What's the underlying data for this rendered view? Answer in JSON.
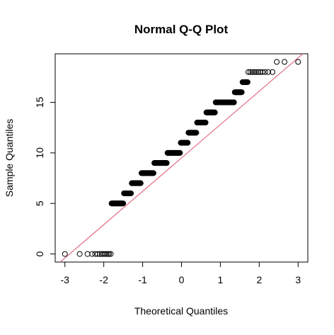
{
  "chart_data": {
    "type": "scatter",
    "title": "Normal Q-Q Plot",
    "xlabel": "Theoretical Quantiles",
    "ylabel": "Sample Quantiles",
    "xlim": [
      -3.25,
      3.25
    ],
    "ylim": [
      -0.8,
      19.8
    ],
    "x_ticks": [
      -3,
      -2,
      -1,
      0,
      1,
      2,
      3
    ],
    "x_tick_labels": [
      "-3",
      "-2",
      "-1",
      "0",
      "1",
      "2",
      "3"
    ],
    "y_ticks": [
      0,
      5,
      10,
      15
    ],
    "y_tick_labels": [
      "0",
      "5",
      "10",
      "15"
    ],
    "grid": false,
    "point_style": "open-circle",
    "reference_line": {
      "intercept": 9.5,
      "slope": 3.3,
      "color": "#DF536B"
    },
    "colors": {
      "points": "#000000",
      "line": "#DF536B",
      "axes": "#000000"
    },
    "steps": [
      {
        "y": 0,
        "x": [
          -3.0,
          -2.62,
          -2.42,
          -2.3,
          -2.22,
          -2.16,
          -2.1,
          -2.05,
          -2.01,
          -1.97,
          -1.93,
          -1.89,
          -1.86,
          -1.82
        ]
      },
      {
        "y": 5,
        "x_from": -1.8,
        "x_to": -1.5
      },
      {
        "y": 6,
        "x_from": -1.48,
        "x_to": -1.3
      },
      {
        "y": 7,
        "x_from": -1.28,
        "x_to": -1.05
      },
      {
        "y": 8,
        "x_from": -1.03,
        "x_to": -0.72
      },
      {
        "y": 9,
        "x_from": -0.7,
        "x_to": -0.38
      },
      {
        "y": 10,
        "x_from": -0.36,
        "x_to": -0.04
      },
      {
        "y": 11,
        "x_from": -0.02,
        "x_to": 0.16
      },
      {
        "y": 12,
        "x_from": 0.18,
        "x_to": 0.38
      },
      {
        "y": 13,
        "x_from": 0.4,
        "x_to": 0.62
      },
      {
        "y": 14,
        "x_from": 0.64,
        "x_to": 0.86
      },
      {
        "y": 15,
        "x_from": 0.88,
        "x_to": 1.35
      },
      {
        "y": 16,
        "x_from": 1.37,
        "x_to": 1.55
      },
      {
        "y": 17,
        "x_from": 1.57,
        "x_to": 1.7
      },
      {
        "y": 18,
        "x": [
          1.72,
          1.77,
          1.82,
          1.87,
          1.92,
          1.97,
          2.02,
          2.08,
          2.15,
          2.23,
          2.34
        ]
      },
      {
        "y": 19,
        "x": [
          2.45,
          2.65,
          3.0
        ]
      }
    ]
  }
}
